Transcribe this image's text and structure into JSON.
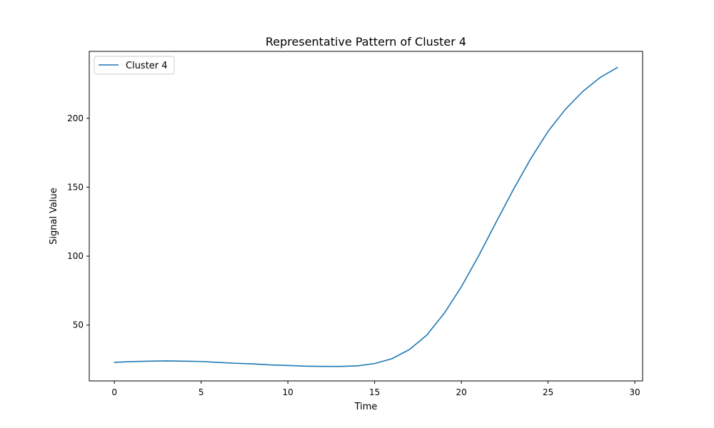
{
  "chart_data": {
    "type": "line",
    "title": "Representative Pattern of Cluster 4",
    "xlabel": "Time",
    "ylabel": "Signal Value",
    "xlim": [
      -1.45,
      30.45
    ],
    "ylim": [
      9.5,
      248.5
    ],
    "xticks": [
      0,
      5,
      10,
      15,
      20,
      25,
      30
    ],
    "yticks": [
      50,
      100,
      150,
      200
    ],
    "grid": false,
    "legend": {
      "position": "top-left"
    },
    "series": [
      {
        "name": "Cluster 4",
        "color": "#1f77b4",
        "x": [
          0,
          1,
          2,
          3,
          4,
          5,
          6,
          7,
          8,
          9,
          10,
          11,
          12,
          13,
          14,
          15,
          16,
          17,
          18,
          19,
          20,
          21,
          22,
          23,
          24,
          25,
          26,
          27,
          28,
          29
        ],
        "y": [
          23.0,
          23.5,
          23.8,
          24.0,
          23.8,
          23.6,
          22.9,
          22.3,
          21.8,
          21.1,
          20.7,
          20.2,
          20.0,
          20.0,
          20.4,
          22.1,
          25.6,
          32.2,
          42.6,
          58.3,
          77.7,
          100.3,
          124.5,
          148.3,
          170.6,
          190.5,
          206.5,
          219.4,
          229.5,
          236.8
        ]
      }
    ]
  }
}
